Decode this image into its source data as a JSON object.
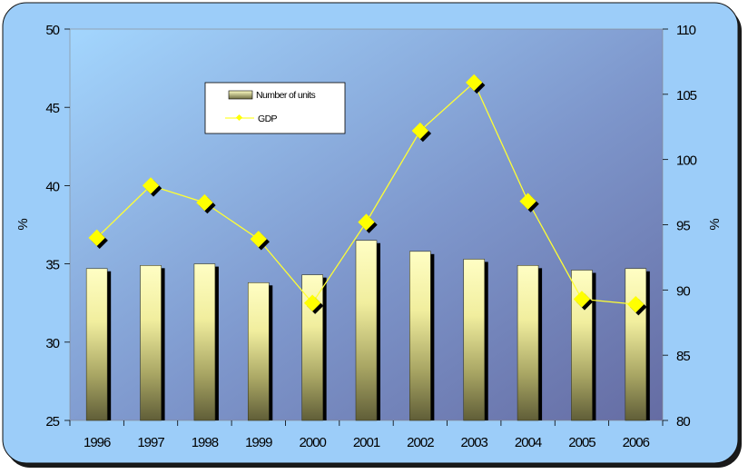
{
  "chart_data": {
    "type": "bar",
    "categories": [
      "1996",
      "1997",
      "1998",
      "1999",
      "2000",
      "2001",
      "2002",
      "2003",
      "2004",
      "2005",
      "2006"
    ],
    "series": [
      {
        "name": "Number of units",
        "type": "bar",
        "axis": "left",
        "values": [
          34.7,
          34.9,
          35.0,
          33.8,
          34.3,
          36.5,
          35.8,
          35.3,
          34.9,
          34.6,
          34.7
        ]
      },
      {
        "name": "GDP",
        "type": "line",
        "axis": "right",
        "values": [
          94.0,
          98.0,
          96.7,
          93.9,
          89.0,
          95.2,
          102.2,
          105.9,
          96.8,
          89.3,
          88.9
        ]
      }
    ],
    "ylabel_left": "%",
    "ylabel_right": "%",
    "ylim_left": [
      25,
      50
    ],
    "ylim_right": [
      80,
      110
    ],
    "yticks_left": [
      "25",
      "30",
      "35",
      "40",
      "45",
      "50"
    ],
    "yticks_right": [
      "80",
      "85",
      "90",
      "95",
      "100",
      "105",
      "110"
    ],
    "legend_position": "upper-left",
    "grid": false
  },
  "colors": {
    "frame_bg": "#9ccdf9",
    "plot_bg_light": "#9fd0fb",
    "plot_bg_dark": "#6971a8",
    "bar_light": "#fffdc0",
    "bar_dark": "#676540",
    "line": "#ffff33",
    "marker": "#ffff00"
  }
}
